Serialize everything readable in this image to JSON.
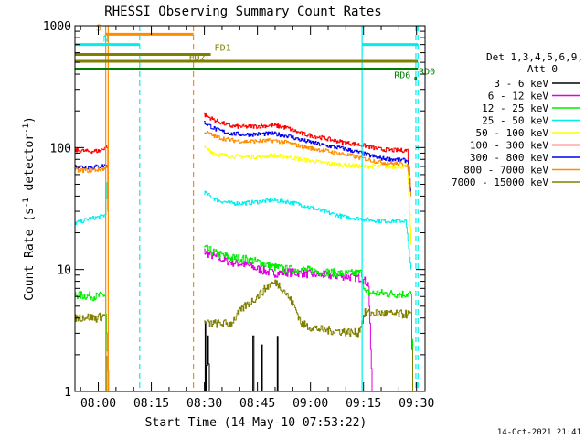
{
  "chart_data": {
    "type": "line",
    "title": "RHESSI Observing Summary Count Rates",
    "xlabel": "Start Time (14-May-10 07:53:22)",
    "ylabel": "Count Rate (s⁻¹ detector⁻¹)",
    "ylabel_main": "Count Rate (s",
    "ylabel_sup1": "-1",
    "ylabel_mid": " detector",
    "ylabel_sup2": "-1",
    "ylabel_end": ")",
    "x_unit": "minutes since 07:53:22",
    "xlim": [
      0,
      99
    ],
    "ylim": [
      1,
      1000
    ],
    "yscale": "log",
    "x_ticks": [
      {
        "label": "08:00",
        "value": 6.6
      },
      {
        "label": "08:15",
        "value": 21.6
      },
      {
        "label": "08:30",
        "value": 36.6
      },
      {
        "label": "08:45",
        "value": 51.6
      },
      {
        "label": "09:00",
        "value": 66.6
      },
      {
        "label": "09:15",
        "value": 81.6
      },
      {
        "label": "09:30",
        "value": 96.6
      }
    ],
    "y_ticks": [
      {
        "label": "1",
        "value": 1
      },
      {
        "label": "10",
        "value": 10
      },
      {
        "label": "100",
        "value": 100
      },
      {
        "label": "1000",
        "value": 1000
      }
    ],
    "legend_header": [
      "Det 1,3,4,5,6,9,",
      "Att 0"
    ],
    "series": [
      {
        "name": "3 - 6 keV",
        "color": "#000000",
        "segments": [
          [
            [
              36.5,
              1
            ],
            [
              36.8,
              3.6
            ],
            [
              37,
              1
            ],
            [
              37.5,
              2.8
            ],
            [
              38,
              1
            ]
          ],
          [
            [
              50,
              1
            ],
            [
              50.3,
              2.8
            ],
            [
              50.6,
              1
            ]
          ],
          [
            [
              52.5,
              1
            ],
            [
              52.8,
              2.4
            ],
            [
              53,
              1
            ]
          ],
          [
            [
              57,
              1
            ],
            [
              57.2,
              2.8
            ],
            [
              57.4,
              1
            ]
          ]
        ]
      },
      {
        "name": "6 - 12 keV",
        "color": "#e000e0",
        "segments": [
          [
            [
              36.5,
              14
            ],
            [
              40,
              12.5
            ],
            [
              44,
              11.5
            ],
            [
              48,
              11
            ],
            [
              52,
              10
            ],
            [
              56,
              9.3
            ],
            [
              60,
              9.5
            ],
            [
              64,
              9.3
            ],
            [
              70,
              9
            ],
            [
              76,
              8.8
            ],
            [
              81,
              8.5
            ],
            [
              83,
              7.5
            ],
            [
              84,
              1
            ]
          ]
        ]
      },
      {
        "name": "12 - 25 keV",
        "color": "#00ee00",
        "segments": [
          [
            [
              0,
              6.2
            ],
            [
              3,
              6.1
            ],
            [
              6,
              6
            ],
            [
              8.5,
              6.2
            ],
            [
              9.5,
              1
            ]
          ],
          [
            [
              36.5,
              15
            ],
            [
              40,
              13.5
            ],
            [
              44,
              12.5
            ],
            [
              48,
              12.2
            ],
            [
              52,
              11.5
            ],
            [
              56,
              10.5
            ],
            [
              60,
              10
            ],
            [
              64,
              10
            ],
            [
              70,
              9.6
            ],
            [
              76,
              9.2
            ],
            [
              81,
              9.4
            ],
            [
              82,
              6.4
            ],
            [
              86,
              6.4
            ],
            [
              90,
              6.3
            ],
            [
              95,
              6.3
            ],
            [
              95.5,
              1
            ]
          ]
        ]
      },
      {
        "name": "25 - 50 keV",
        "color": "#00eeee",
        "segments": [
          [
            [
              0,
              24
            ],
            [
              4,
              26
            ],
            [
              7,
              27
            ],
            [
              8.5,
              28
            ],
            [
              9,
              52
            ]
          ],
          [
            [
              36.5,
              43
            ],
            [
              40,
              37
            ],
            [
              44,
              35
            ],
            [
              48,
              35
            ],
            [
              52,
              36
            ],
            [
              56,
              37
            ],
            [
              60,
              36
            ],
            [
              64,
              34
            ],
            [
              70,
              30
            ],
            [
              76,
              27
            ],
            [
              81,
              26
            ],
            [
              86,
              25
            ],
            [
              90,
              25
            ],
            [
              93.5,
              25
            ],
            [
              95,
              10
            ]
          ]
        ]
      },
      {
        "name": "50 - 100 keV",
        "color": "#ffff00",
        "segments": [
          [
            [
              36.5,
              100
            ],
            [
              40,
              88
            ],
            [
              44,
              85
            ],
            [
              48,
              84
            ],
            [
              52,
              84
            ],
            [
              56,
              86
            ],
            [
              60,
              84
            ],
            [
              64,
              80
            ],
            [
              70,
              75
            ],
            [
              76,
              72
            ],
            [
              81,
              70
            ],
            [
              86,
              70
            ],
            [
              90,
              70
            ],
            [
              94,
              70
            ],
            [
              95,
              16
            ]
          ]
        ]
      },
      {
        "name": "100 - 300 keV",
        "color": "#ff0000",
        "segments": [
          [
            [
              0,
              95
            ],
            [
              4,
              93
            ],
            [
              7,
              94
            ],
            [
              9,
              103
            ],
            [
              9.3,
              30
            ]
          ],
          [
            [
              36.5,
              185
            ],
            [
              40,
              165
            ],
            [
              44,
              150
            ],
            [
              48,
              148
            ],
            [
              52,
              150
            ],
            [
              56,
              152
            ],
            [
              60,
              145
            ],
            [
              64,
              130
            ],
            [
              70,
              120
            ],
            [
              76,
              110
            ],
            [
              81,
              105
            ],
            [
              86,
              97
            ],
            [
              90,
              95
            ],
            [
              94,
              95
            ],
            [
              95,
              40
            ]
          ]
        ]
      },
      {
        "name": "300 - 800 keV",
        "color": "#0000ee",
        "segments": [
          [
            [
              0,
              70
            ],
            [
              4,
              69
            ],
            [
              7,
              70
            ],
            [
              9,
              72
            ]
          ],
          [
            [
              36.5,
              160
            ],
            [
              40,
              140
            ],
            [
              44,
              130
            ],
            [
              48,
              128
            ],
            [
              52,
              129
            ],
            [
              56,
              130
            ],
            [
              60,
              125
            ],
            [
              64,
              115
            ],
            [
              70,
              105
            ],
            [
              76,
              98
            ],
            [
              81,
              90
            ],
            [
              86,
              82
            ],
            [
              90,
              80
            ],
            [
              94,
              78
            ],
            [
              95,
              40
            ]
          ]
        ]
      },
      {
        "name": "800 - 7000 keV",
        "color": "#ff8c00",
        "segments": [
          [
            [
              0,
              65
            ],
            [
              4,
              65
            ],
            [
              7,
              66
            ],
            [
              9,
              68
            ]
          ],
          [
            [
              36.5,
              135
            ],
            [
              40,
              122
            ],
            [
              44,
              115
            ],
            [
              48,
              112
            ],
            [
              52,
              113
            ],
            [
              56,
              114
            ],
            [
              60,
              110
            ],
            [
              64,
              102
            ],
            [
              70,
              95
            ],
            [
              76,
              88
            ],
            [
              81,
              82
            ],
            [
              86,
              76
            ],
            [
              90,
              74
            ],
            [
              94,
              72
            ],
            [
              95,
              40
            ]
          ]
        ]
      },
      {
        "name": "7000 - 15000 keV",
        "color": "#808000",
        "segments": [
          [
            [
              0,
              4
            ],
            [
              3,
              4.1
            ],
            [
              6,
              4
            ],
            [
              8.5,
              4.2
            ],
            [
              9,
              1
            ]
          ],
          [
            [
              36.5,
              3.6
            ],
            [
              44,
              3.6
            ],
            [
              46,
              4.3
            ],
            [
              48,
              5
            ],
            [
              50,
              5.5
            ],
            [
              52,
              6.2
            ],
            [
              55,
              7.5
            ],
            [
              57,
              7.8
            ],
            [
              59,
              6.8
            ],
            [
              62,
              5
            ],
            [
              64,
              3.6
            ],
            [
              66,
              3.4
            ],
            [
              70,
              3.2
            ],
            [
              76,
              3.1
            ],
            [
              80,
              3
            ],
            [
              82,
              4.4
            ],
            [
              86,
              4.4
            ],
            [
              90,
              4.3
            ],
            [
              95,
              4.3
            ],
            [
              95.5,
              1
            ]
          ]
        ]
      }
    ],
    "flags": [
      {
        "label": "S",
        "color": "#ff8c00",
        "x0": 8.5,
        "x1": 33.5,
        "y": 850
      },
      {
        "label": "N",
        "color": "#00eeee",
        "x0": 0,
        "x1": 18.3,
        "y": 700
      },
      {
        "label": "N",
        "color": "#00eeee",
        "x0": 81.2,
        "x1": 97,
        "y": 700
      },
      {
        "label": "FD1",
        "color": "#808000",
        "x0": 0,
        "x1": 38.4,
        "y": 580
      },
      {
        "label": "FD2",
        "color": "#808000",
        "x0": 0,
        "x1": 97,
        "y": 510
      },
      {
        "label": "RD6",
        "color": "#008000",
        "x0": 0,
        "x1": 97,
        "y": 440
      },
      {
        "label": "RD0",
        "color": "#008000",
        "x0": 96,
        "x1": 96.7,
        "y": 370
      }
    ],
    "vertical_lines": [
      {
        "x": 8.7,
        "color": "#ff8c00",
        "style": "solid"
      },
      {
        "x": 9.4,
        "color": "#ff8c00",
        "style": "solid"
      },
      {
        "x": 18.3,
        "color": "#00eeee",
        "style": "dashed"
      },
      {
        "x": 33.5,
        "color": "#ff8c00",
        "style": "dashed"
      },
      {
        "x": 81.2,
        "color": "#00eeee",
        "style": "solid"
      },
      {
        "x": 96.4,
        "color": "#00eeee",
        "style": "dashed"
      },
      {
        "x": 97,
        "color": "#00eeee",
        "style": "dashed"
      }
    ],
    "timestamp": "14-Oct-2021 21:41"
  }
}
